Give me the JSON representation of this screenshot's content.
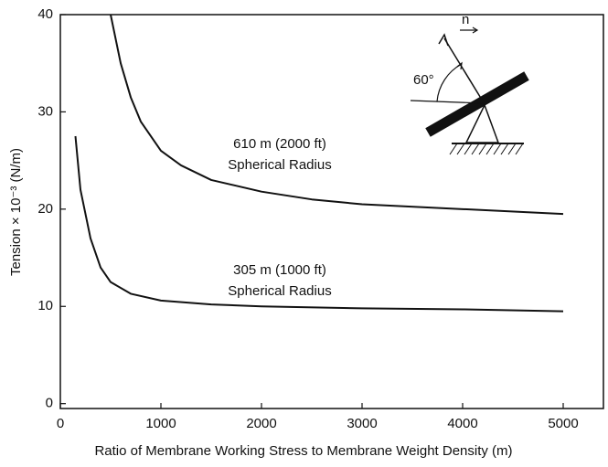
{
  "chart_data": {
    "type": "line",
    "xlabel": "Ratio of Membrane Working Stress to Membrane Weight Density (m)",
    "ylabel": "Tension × 10⁻³ (N/m)",
    "xlim": [
      0,
      5400
    ],
    "xticks": [
      0,
      1000,
      2000,
      3000,
      4000,
      5000
    ],
    "ylim": [
      -0.5,
      40
    ],
    "yticks": [
      0,
      10,
      20,
      30,
      40
    ],
    "series": [
      {
        "name": "610 m (2000 ft)",
        "color": "#111111",
        "x": [
          500,
          600,
          700,
          800,
          1000,
          1200,
          1500,
          2000,
          2500,
          3000,
          4000,
          5000
        ],
        "values": [
          40,
          35,
          31.5,
          29,
          26,
          24.5,
          23,
          21.8,
          21,
          20.5,
          20,
          19.5
        ]
      },
      {
        "name": "305 m (1000 ft)",
        "color": "#111111",
        "x": [
          150,
          200,
          300,
          400,
          500,
          700,
          1000,
          1500,
          2000,
          3000,
          4000,
          5000
        ],
        "values": [
          27.5,
          22,
          17,
          14,
          12.5,
          11.3,
          10.6,
          10.2,
          10,
          9.8,
          9.7,
          9.5
        ]
      }
    ],
    "annotations": [
      "Spherical Radius",
      "Spherical Radius",
      "60°",
      "n"
    ]
  }
}
